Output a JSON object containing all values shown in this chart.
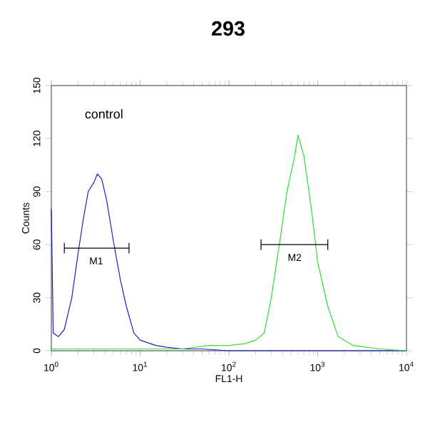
{
  "chart_data": {
    "type": "line",
    "title": "293",
    "xlabel": "FL1-H",
    "ylabel": "Counts",
    "log": "x",
    "grid": false,
    "marker": "none",
    "line_style": "solid",
    "xlim": [
      1,
      10000
    ],
    "xticks": [
      {
        "value": 1,
        "label": "10$^{0}$"
      },
      {
        "value": 10,
        "label": "10$^{1}$"
      },
      {
        "value": 100,
        "label": "10$^{2}$"
      },
      {
        "value": 1000,
        "label": "10$^{3}$"
      },
      {
        "value": 10000,
        "label": "10$^{4}$"
      }
    ],
    "ylim": [
      0,
      150
    ],
    "yticks": [
      0,
      30,
      60,
      90,
      120,
      150
    ],
    "series": [
      {
        "color": "#2020c0",
        "x": [
          1,
          1.05,
          1.2,
          1.4,
          1.7,
          2.0,
          2.3,
          2.6,
          3.0,
          3.3,
          3.7,
          4.2,
          5,
          6,
          7,
          8.5,
          10,
          15,
          20,
          30,
          50,
          100,
          10000
        ],
        "values": [
          80,
          10,
          8,
          12,
          30,
          55,
          75,
          90,
          95,
          100,
          97,
          85,
          62,
          40,
          25,
          10,
          6,
          3,
          2,
          1,
          1,
          0,
          0
        ]
      },
      {
        "color": "#33dd33",
        "x": [
          1,
          10,
          30,
          60,
          100,
          150,
          200,
          250,
          300,
          370,
          450,
          550,
          600,
          700,
          850,
          1000,
          1300,
          1700,
          2500,
          5000,
          10000
        ],
        "values": [
          1,
          1,
          1,
          3,
          3,
          4,
          6,
          10,
          30,
          60,
          90,
          110,
          122,
          110,
          80,
          50,
          25,
          8,
          3,
          1,
          0
        ]
      },
      {
        "color": "#000000",
        "x": [
          1.4,
          7.5
        ],
        "values": [
          58,
          58
        ],
        "errors": [
          3,
          3
        ]
      },
      {
        "color": "#000000",
        "x": [
          230,
          1300
        ],
        "values": [
          60,
          60
        ],
        "errors": [
          3,
          3
        ]
      }
    ],
    "annotations": [
      "control",
      {
        "text": "M1",
        "x": 3.2,
        "y": 58
      },
      {
        "text": "M2",
        "x": 550,
        "y": 60
      }
    ]
  }
}
